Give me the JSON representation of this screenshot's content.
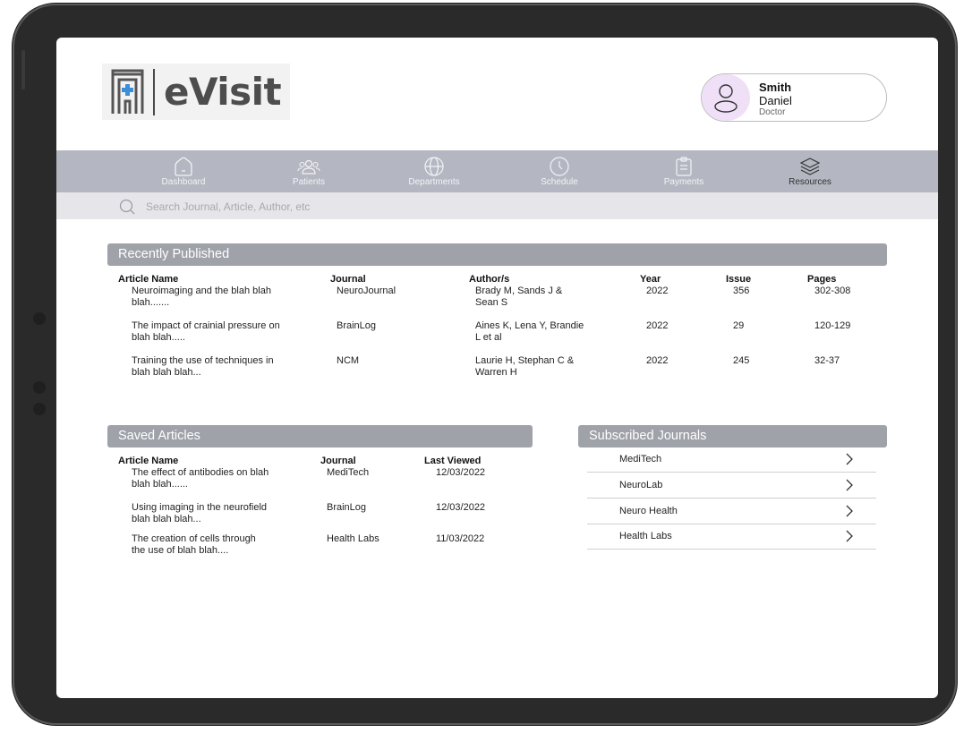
{
  "brand": {
    "name": "eVisit"
  },
  "profile": {
    "last_name": "Smith",
    "first_name": "Daniel",
    "role": "Doctor"
  },
  "nav": [
    {
      "label": "Dashboard",
      "icon": "home-icon"
    },
    {
      "label": "Patients",
      "icon": "users-icon"
    },
    {
      "label": "Departments",
      "icon": "globe-icon"
    },
    {
      "label": "Schedule",
      "icon": "clock-icon"
    },
    {
      "label": "Payments",
      "icon": "clipboard-icon"
    },
    {
      "label": "Resources",
      "icon": "layers-icon"
    }
  ],
  "search": {
    "placeholder": "Search Journal, Article, Author, etc",
    "value": ""
  },
  "recently_published": {
    "title": "Recently Published",
    "headers": {
      "article": "Article Name",
      "journal": "Journal",
      "authors": "Author/s",
      "year": "Year",
      "issue": "Issue",
      "pages": "Pages"
    },
    "rows": [
      {
        "article": [
          "Neuroimaging and the blah blah",
          "blah......."
        ],
        "journal": "NeuroJournal",
        "authors": [
          "Brady M, Sands J &",
          "Sean S"
        ],
        "year": "2022",
        "issue": "356",
        "pages": "302-308"
      },
      {
        "article": [
          "The impact of crainial pressure on",
          "blah blah....."
        ],
        "journal": "BrainLog",
        "authors": [
          "Aines K, Lena Y, Brandie",
          "L et al"
        ],
        "year": "2022",
        "issue": "29",
        "pages": "120-129"
      },
      {
        "article": [
          "Training the use of techniques in",
          "blah blah blah..."
        ],
        "journal": "NCM",
        "authors": [
          "Laurie H, Stephan C &",
          "Warren H"
        ],
        "year": "2022",
        "issue": "245",
        "pages": "32-37"
      }
    ]
  },
  "saved_articles": {
    "title": "Saved Articles",
    "headers": {
      "article": "Article Name",
      "journal": "Journal",
      "last_viewed": "Last Viewed"
    },
    "rows": [
      {
        "article": [
          "The effect of antibodies on blah",
          "blah blah......"
        ],
        "journal": "MediTech",
        "last_viewed": "12/03/2022"
      },
      {
        "article": [
          "Using imaging in the neurofield",
          "blah blah blah..."
        ],
        "journal": "BrainLog",
        "last_viewed": "12/03/2022"
      },
      {
        "article": [
          "The creation of cells through",
          "the use of blah blah...."
        ],
        "journal": "Health Labs",
        "last_viewed": "11/03/2022"
      }
    ]
  },
  "subscribed_journals": {
    "title": "Subscribed Journals",
    "items": [
      {
        "name": "MediTech"
      },
      {
        "name": "NeuroLab"
      },
      {
        "name": "Neuro Health"
      },
      {
        "name": "Health Labs"
      }
    ]
  },
  "colors": {
    "nav_bg": "#b4b7c1",
    "search_bg": "#e6e6ea",
    "section_header_bg": "#a0a2aa",
    "avatar_bg": "#efe0f8",
    "logo_cross": "#3b8fd6"
  }
}
